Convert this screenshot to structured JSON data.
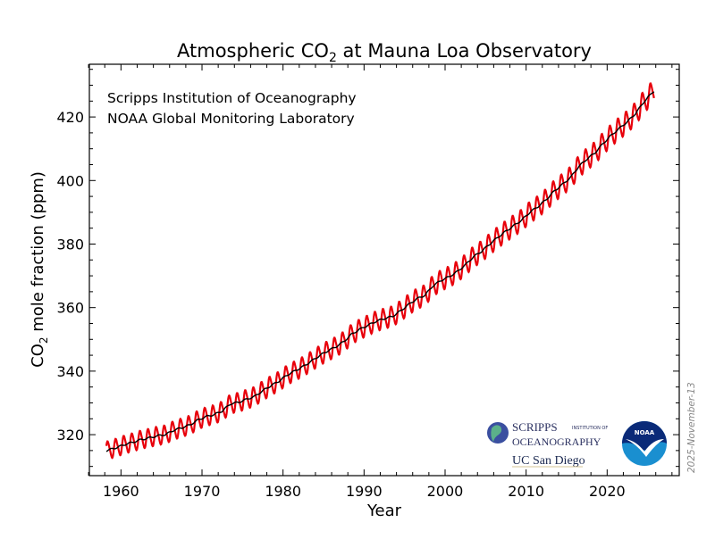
{
  "chart_data": {
    "type": "line",
    "title": "Atmospheric CO",
    "title_subscript": "2",
    "title_suffix": " at Mauna Loa Observatory",
    "xlabel": "Year",
    "ylabel": "CO",
    "ylabel_subscript": "2",
    "ylabel_suffix": " mole fraction (ppm)",
    "xlim": [
      1956.1,
      2028.9
    ],
    "ylim": [
      307.1,
      436.6
    ],
    "xticks": [
      1960,
      1970,
      1980,
      1990,
      2000,
      2010,
      2020
    ],
    "yticks": [
      320,
      340,
      360,
      380,
      400,
      420
    ],
    "grid": false,
    "annotations": [
      "Scripps Institution of Oceanography",
      "NOAA Global Monitoring Laboratory"
    ],
    "date_stamp": "2025-November-13",
    "logos": {
      "scripps_line1": "SCRIPPS",
      "scripps_small": "INSTITUTION OF",
      "scripps_line2": "OCEANOGRAPHY",
      "ucsd": "UC San Diego",
      "noaa": "NOAA"
    },
    "series": [
      {
        "role": "monthly",
        "color": "#e8000b",
        "seasonal_peak_to_peak_ppm": [
          6.0,
          7.5
        ]
      },
      {
        "role": "trend",
        "color": "#000000",
        "years": [
          1958,
          1959,
          1960,
          1961,
          1962,
          1963,
          1964,
          1965,
          1966,
          1967,
          1968,
          1969,
          1970,
          1971,
          1972,
          1973,
          1974,
          1975,
          1976,
          1977,
          1978,
          1979,
          1980,
          1981,
          1982,
          1983,
          1984,
          1985,
          1986,
          1987,
          1988,
          1989,
          1990,
          1991,
          1992,
          1993,
          1994,
          1995,
          1996,
          1997,
          1998,
          1999,
          2000,
          2001,
          2002,
          2003,
          2004,
          2005,
          2006,
          2007,
          2008,
          2009,
          2010,
          2011,
          2012,
          2013,
          2014,
          2015,
          2016,
          2017,
          2018,
          2019,
          2020,
          2021,
          2022,
          2023,
          2024,
          2025
        ],
        "values": [
          315.2,
          315.98,
          316.91,
          317.64,
          318.45,
          318.99,
          319.62,
          320.04,
          321.37,
          322.18,
          323.05,
          324.62,
          325.68,
          326.32,
          327.46,
          329.68,
          330.19,
          331.13,
          332.03,
          333.84,
          335.41,
          336.84,
          338.76,
          340.12,
          341.48,
          343.15,
          344.87,
          346.35,
          347.61,
          349.31,
          351.69,
          353.2,
          354.45,
          355.7,
          356.54,
          357.21,
          358.96,
          360.97,
          362.74,
          363.88,
          366.84,
          368.54,
          369.71,
          371.32,
          373.45,
          375.98,
          377.7,
          379.98,
          382.09,
          384.02,
          385.83,
          387.64,
          390.1,
          391.85,
          394.06,
          396.74,
          398.81,
          401.01,
          404.41,
          406.76,
          408.72,
          411.65,
          414.21,
          416.41,
          418.53,
          421.08,
          424.61,
          427.5
        ]
      }
    ]
  }
}
